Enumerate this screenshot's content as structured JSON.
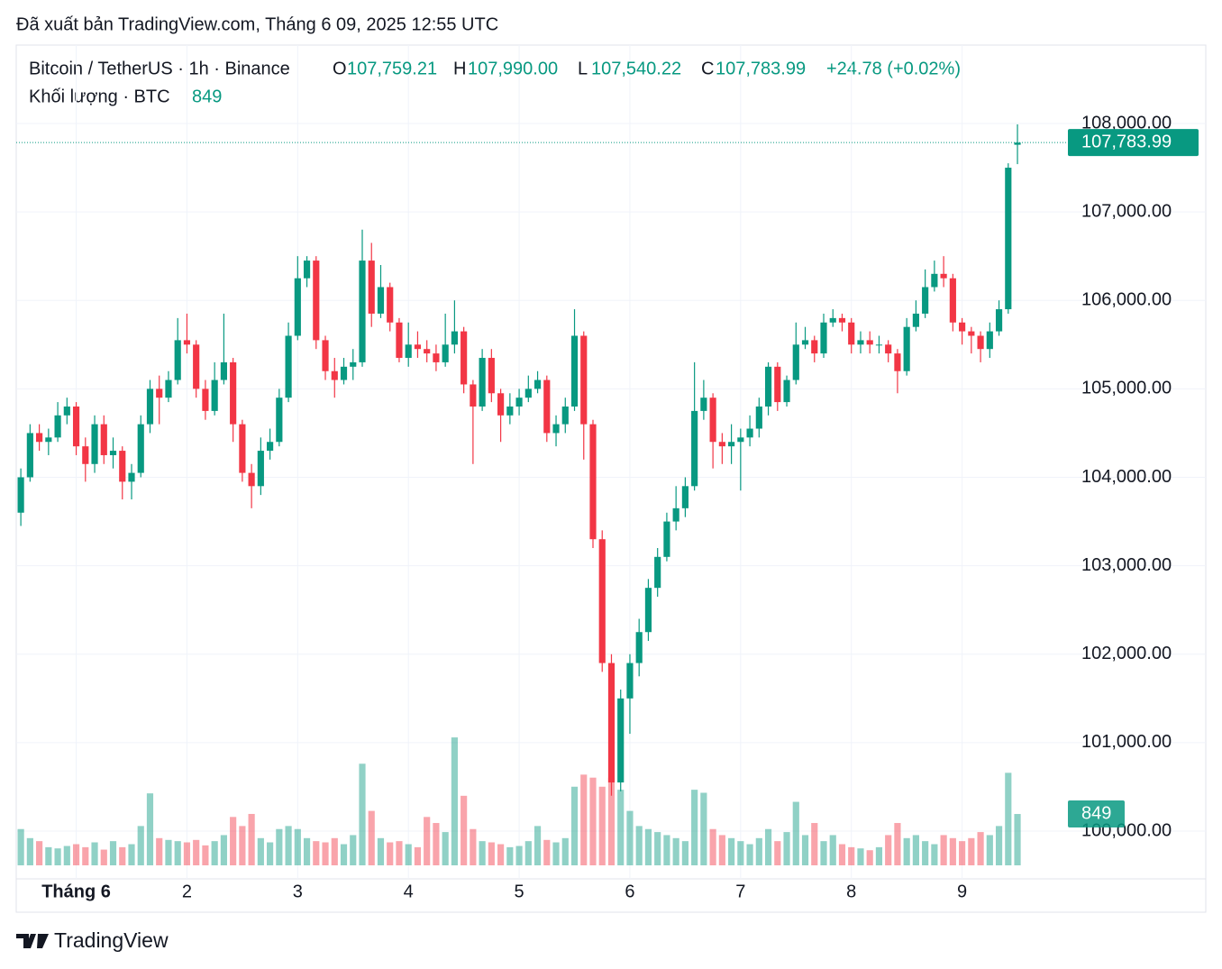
{
  "published": "Đã xuất bản TradingView.com, Tháng 6 09, 2025 12:55 UTC",
  "brand": "TradingView",
  "chart_data": {
    "type": "candlestick",
    "title": "Bitcoin / TetherUS · 1h · Binance",
    "ohlc_legend": [
      {
        "key": "O",
        "label": "107,759.21"
      },
      {
        "key": "H",
        "label": "107,990.00"
      },
      {
        "key": "L",
        "label": "107,540.22"
      },
      {
        "key": "C",
        "label": "107,783.99"
      }
    ],
    "change_label": "+24.78 (+0.02%)",
    "volume_title": "Khối lượng · BTC",
    "last_price_label": "107,783.99",
    "up_color": "#089981",
    "down_color": "#f23645",
    "grid": true,
    "xlim": [
      -0.5,
      112
    ],
    "xticks": [
      {
        "value": 6,
        "label": "Tháng 6"
      },
      {
        "value": 18,
        "label": "2"
      },
      {
        "value": 30,
        "label": "3"
      },
      {
        "value": 42,
        "label": "4"
      },
      {
        "value": 54,
        "label": "5"
      },
      {
        "value": 66,
        "label": "6"
      },
      {
        "value": 78,
        "label": "7"
      },
      {
        "value": 90,
        "label": "8"
      },
      {
        "value": 102,
        "label": "9"
      }
    ],
    "ylim": [
      99613,
      108173
    ],
    "yticks": [
      {
        "value": 100000,
        "label": "100,000.00"
      },
      {
        "value": 101000,
        "label": "101,000.00"
      },
      {
        "value": 102000,
        "label": "102,000.00"
      },
      {
        "value": 103000,
        "label": "103,000.00"
      },
      {
        "value": 104000,
        "label": "104,000.00"
      },
      {
        "value": 105000,
        "label": "105,000.00"
      },
      {
        "value": 106000,
        "label": "106,000.00"
      },
      {
        "value": 107000,
        "label": "107,000.00"
      },
      {
        "value": 108000,
        "label": "108,000.00"
      }
    ],
    "open": [
      103600,
      104000,
      104500,
      104400,
      104450,
      104700,
      104800,
      104350,
      104150,
      104600,
      104250,
      104300,
      103950,
      104050,
      104600,
      105000,
      104900,
      105100,
      105550,
      105500,
      105000,
      104750,
      105100,
      105300,
      104600,
      104050,
      103900,
      104300,
      104400,
      104900,
      105600,
      106250,
      106450,
      105550,
      105200,
      105100,
      105250,
      105300,
      106450,
      105850,
      106150,
      105750,
      105350,
      105500,
      105450,
      105400,
      105300,
      105500,
      105650,
      105050,
      104800,
      105350,
      104950,
      104700,
      104800,
      104900,
      105000,
      105100,
      104500,
      104600,
      104800,
      105600,
      104600,
      103300,
      101900,
      100550,
      101500,
      101900,
      102250,
      102750,
      103100,
      103500,
      103650,
      103900,
      104750,
      104900,
      104400,
      104350,
      104400,
      104450,
      104550,
      104800,
      105250,
      104850,
      105100,
      105500,
      105550,
      105400,
      105750,
      105800,
      105750,
      105500,
      105550,
      105500,
      105500,
      105400,
      105200,
      105700,
      105850,
      106150,
      106300,
      106250,
      105750,
      105650,
      105600,
      105450,
      105650,
      105900,
      107759.21
    ],
    "high": [
      104100,
      104600,
      104600,
      104550,
      104850,
      104900,
      104850,
      104450,
      104700,
      104700,
      104450,
      104350,
      104150,
      104700,
      105100,
      105150,
      105200,
      105800,
      105850,
      105550,
      105100,
      105300,
      105850,
      105350,
      104650,
      104150,
      104450,
      104550,
      105000,
      105750,
      106500,
      106500,
      106500,
      105600,
      105350,
      105350,
      105450,
      106800,
      106650,
      106400,
      106200,
      105800,
      105750,
      105650,
      105550,
      105500,
      105850,
      106000,
      105700,
      105100,
      105450,
      105450,
      105000,
      104950,
      105000,
      105150,
      105200,
      105150,
      104700,
      104900,
      105900,
      105650,
      104650,
      103400,
      102000,
      101600,
      102000,
      102400,
      102850,
      103200,
      103600,
      103900,
      104000,
      105300,
      105100,
      104950,
      104500,
      104600,
      104550,
      104700,
      104900,
      105300,
      105300,
      105150,
      105750,
      105700,
      105600,
      105850,
      105900,
      105850,
      105800,
      105650,
      105650,
      105600,
      105550,
      105450,
      105800,
      106000,
      106350,
      106450,
      106500,
      106300,
      105800,
      105700,
      105650,
      105750,
      106000,
      107550,
      107990
    ],
    "low": [
      103450,
      103950,
      104300,
      104250,
      104400,
      104600,
      104250,
      103950,
      104050,
      104150,
      104100,
      103750,
      103750,
      104000,
      104500,
      104600,
      104850,
      105050,
      105400,
      104900,
      104650,
      104700,
      105050,
      104400,
      103950,
      103650,
      103800,
      104200,
      104350,
      104850,
      105550,
      106150,
      105450,
      105100,
      104900,
      105050,
      105100,
      105250,
      105700,
      105800,
      105650,
      105300,
      105250,
      105350,
      105300,
      105200,
      105250,
      105400,
      104950,
      104150,
      104750,
      104850,
      104400,
      104600,
      104700,
      104850,
      104950,
      104400,
      104350,
      104500,
      104750,
      104200,
      103200,
      101800,
      100400,
      100450,
      101100,
      101750,
      102150,
      102650,
      103050,
      103400,
      103550,
      103850,
      104650,
      104100,
      104150,
      104150,
      103850,
      104350,
      104450,
      104700,
      104750,
      104800,
      105050,
      105450,
      105300,
      105350,
      105700,
      105650,
      105400,
      105400,
      105400,
      105400,
      105300,
      104950,
      105150,
      105650,
      105800,
      106100,
      106150,
      105650,
      105500,
      105400,
      105300,
      105350,
      105600,
      105850,
      107540.22
    ],
    "close": [
      104000,
      104500,
      104400,
      104450,
      104700,
      104800,
      104350,
      104150,
      104600,
      104250,
      104300,
      103950,
      104050,
      104600,
      105000,
      104900,
      105100,
      105550,
      105500,
      105000,
      104750,
      105100,
      105300,
      104600,
      104050,
      103900,
      104300,
      104400,
      104900,
      105600,
      106250,
      106450,
      105550,
      105200,
      105100,
      105250,
      105300,
      106450,
      105850,
      106150,
      105750,
      105350,
      105500,
      105450,
      105400,
      105300,
      105500,
      105650,
      105050,
      104800,
      105350,
      104950,
      104700,
      104800,
      104900,
      105000,
      105100,
      104500,
      104600,
      104800,
      105600,
      104600,
      103300,
      101900,
      100550,
      101500,
      101900,
      102250,
      102750,
      103100,
      103500,
      103650,
      103900,
      104750,
      104900,
      104400,
      104350,
      104400,
      104450,
      104550,
      104800,
      105250,
      104850,
      105100,
      105500,
      105550,
      105400,
      105750,
      105800,
      105750,
      105500,
      105550,
      105500,
      105500,
      105400,
      105200,
      105700,
      105850,
      106150,
      106300,
      106250,
      105750,
      105650,
      105600,
      105450,
      105650,
      105900,
      107500,
      107783.99
    ],
    "volume": [
      600,
      450,
      400,
      300,
      280,
      320,
      350,
      300,
      380,
      260,
      400,
      300,
      350,
      650,
      1190,
      450,
      420,
      400,
      380,
      420,
      330,
      400,
      500,
      800,
      650,
      850,
      450,
      380,
      600,
      650,
      600,
      450,
      400,
      380,
      450,
      350,
      500,
      1680,
      900,
      450,
      380,
      400,
      350,
      300,
      800,
      700,
      550,
      2115,
      1150,
      600,
      400,
      380,
      350,
      300,
      320,
      400,
      650,
      420,
      380,
      450,
      1300,
      1500,
      1450,
      1300,
      1450,
      1250,
      900,
      650,
      600,
      550,
      500,
      450,
      400,
      1250,
      1200,
      600,
      500,
      450,
      400,
      350,
      450,
      600,
      400,
      550,
      1050,
      500,
      700,
      400,
      500,
      350,
      300,
      280,
      250,
      300,
      500,
      700,
      450,
      500,
      400,
      350,
      500,
      450,
      400,
      450,
      550,
      500,
      650,
      1530,
      849
    ]
  }
}
